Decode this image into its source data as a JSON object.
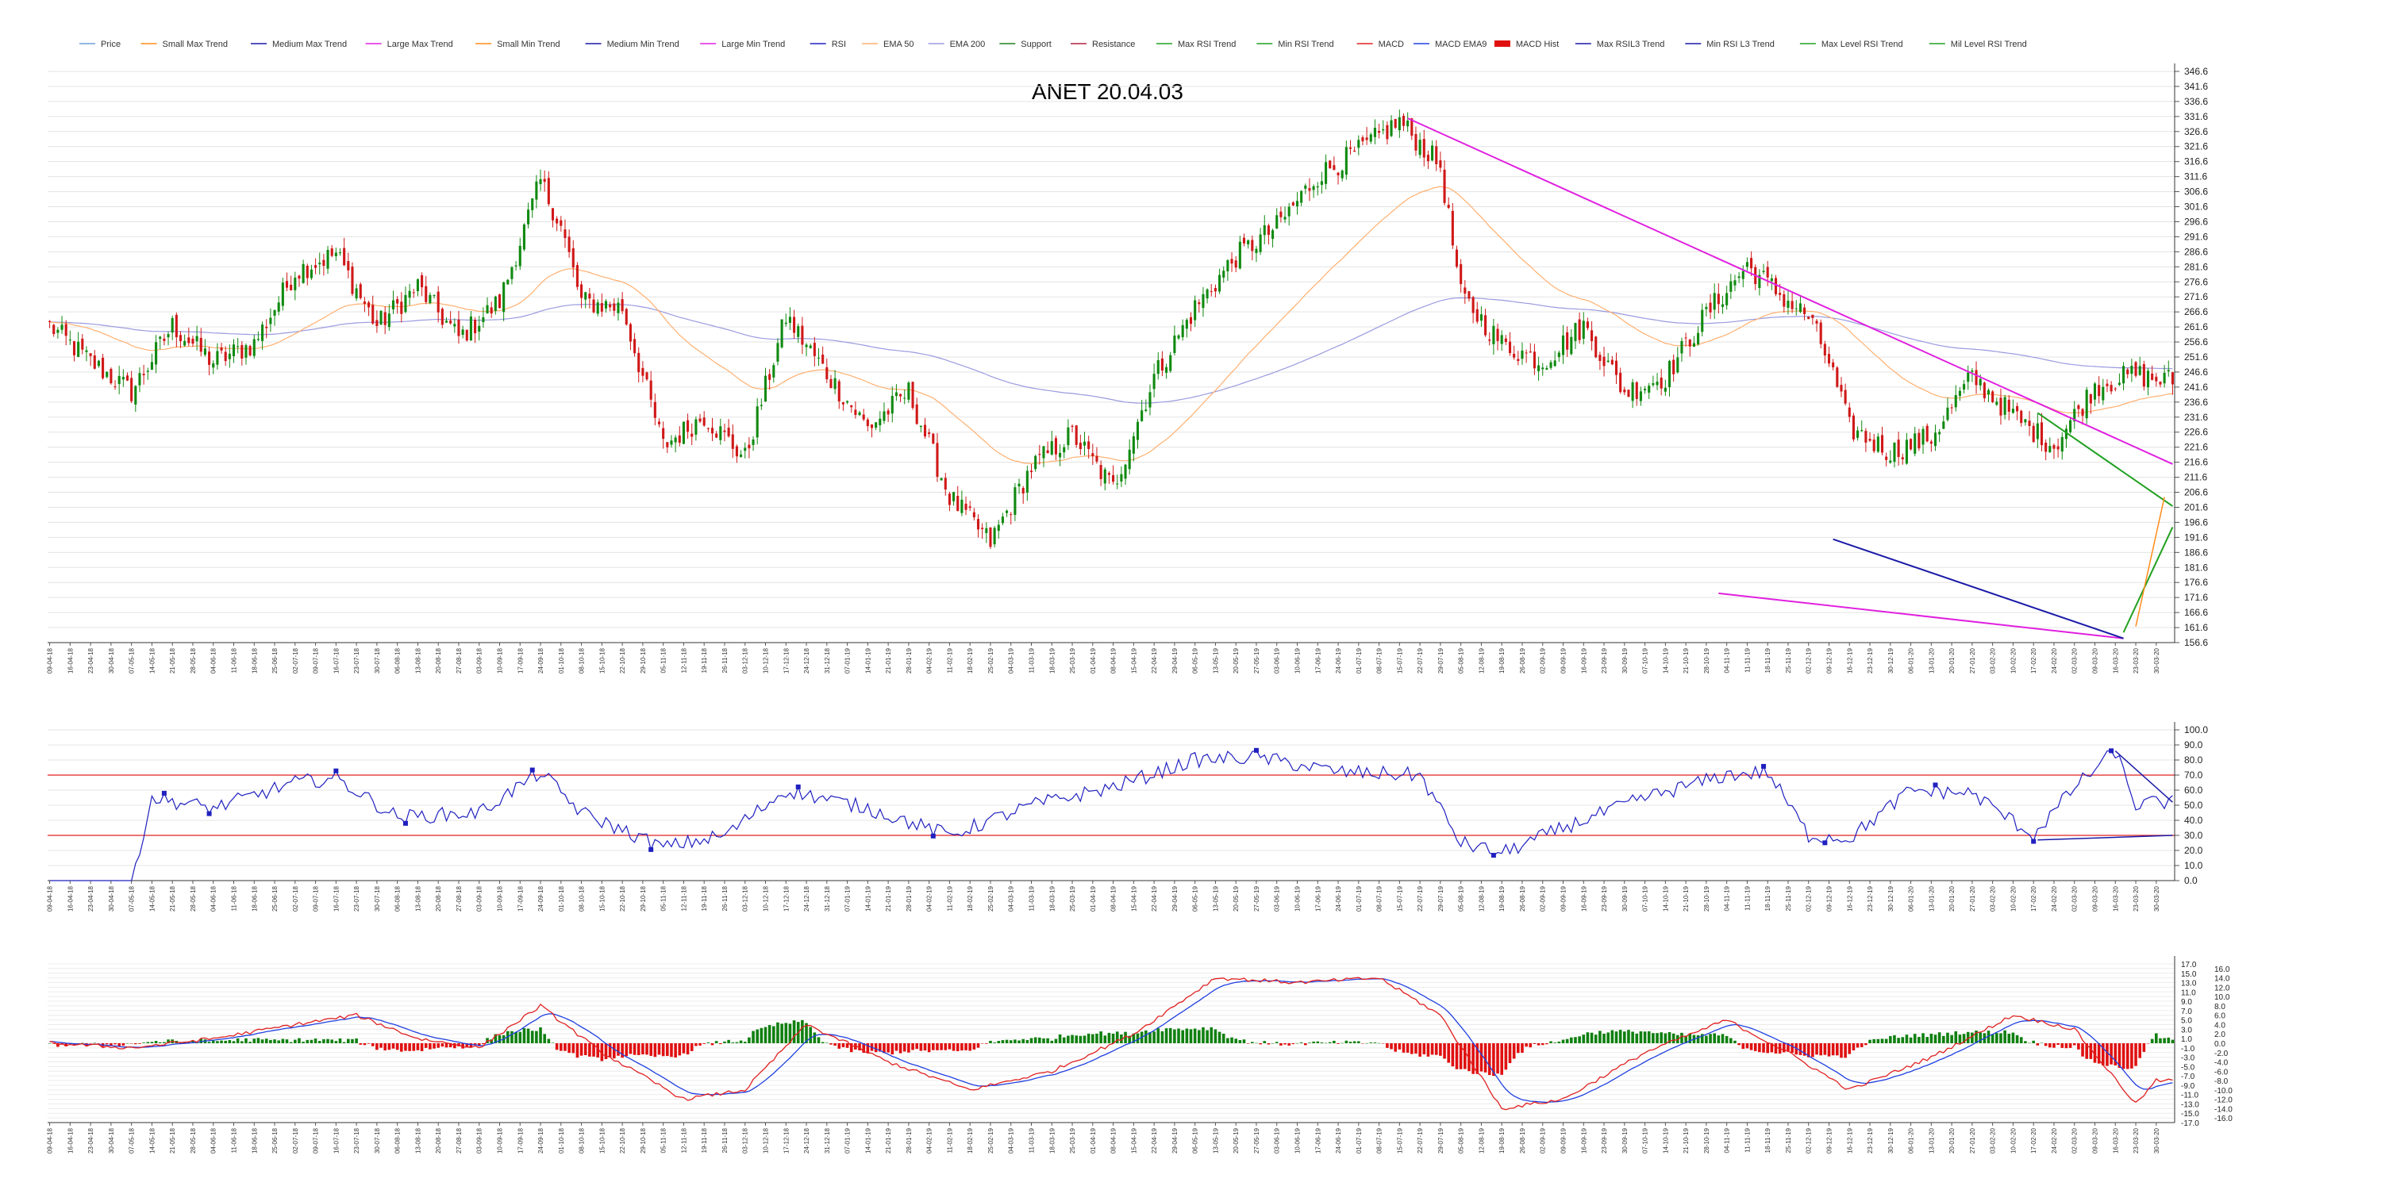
{
  "chart_data": [
    {
      "type": "candlestick",
      "title": "ANET 20.04.03",
      "legend_position": "top-left",
      "legend": [
        {
          "label": "Price",
          "color": "#6f9fd8"
        },
        {
          "label": "Small Max Trend",
          "color": "#ff8c1a"
        },
        {
          "label": "Medium Max Trend",
          "color": "#1a1aa8"
        },
        {
          "label": "Large Max Trend",
          "color": "#e020e0"
        },
        {
          "label": "Small Min Trend",
          "color": "#ff8c1a"
        },
        {
          "label": "Medium Min Trend",
          "color": "#1a1aa8"
        },
        {
          "label": "Large Min Trend",
          "color": "#e020e0"
        },
        {
          "label": "RSI",
          "color": "#2020c0"
        },
        {
          "label": "EMA 50",
          "color": "#ffb070"
        },
        {
          "label": "EMA 200",
          "color": "#9a9ae0"
        },
        {
          "label": "Support",
          "color": "#208020"
        },
        {
          "label": "Resistance",
          "color": "#b02040"
        },
        {
          "label": "Max RSI Trend",
          "color": "#20a020"
        },
        {
          "label": "Min RSI Trend",
          "color": "#20a020"
        },
        {
          "label": "MACD",
          "color": "#e02020"
        },
        {
          "label": "MACD EMA9",
          "color": "#2040e0"
        },
        {
          "label": "MACD Hist",
          "color": "#e01010"
        },
        {
          "label": "Max RSIL3 Trend",
          "color": "#1a1aa8"
        },
        {
          "label": "Min RSI L3 Trend",
          "color": "#1a1aa8"
        },
        {
          "label": "Max Level RSI Trend",
          "color": "#20a020"
        },
        {
          "label": "Mil Level RSI Trend",
          "color": "#20a020"
        }
      ],
      "y_axis": {
        "min": 156.6,
        "max": 346.6,
        "step": 5,
        "side": "right"
      },
      "y_ticks": [
        "346.6",
        "341.6",
        "336.6",
        "331.6",
        "326.6",
        "321.6",
        "316.6",
        "311.6",
        "306.6",
        "301.6",
        "296.6",
        "291.6",
        "286.6",
        "281.6",
        "276.6",
        "271.6",
        "266.6",
        "261.6",
        "256.6",
        "251.6",
        "246.6",
        "241.6",
        "236.6",
        "231.6",
        "226.6",
        "221.6",
        "216.6",
        "211.6",
        "206.6",
        "201.6",
        "196.6",
        "191.6",
        "186.6",
        "181.6",
        "176.6",
        "171.6",
        "166.6",
        "161.6",
        "156.6"
      ],
      "x_range": [
        "2018-04-09",
        "2020-04-03"
      ],
      "price_anchors": [
        [
          "2018-04-09",
          262
        ],
        [
          "2018-04-23",
          250
        ],
        [
          "2018-05-07",
          240
        ],
        [
          "2018-05-21",
          262
        ],
        [
          "2018-06-04",
          250
        ],
        [
          "2018-06-18",
          256
        ],
        [
          "2018-07-02",
          280
        ],
        [
          "2018-07-16",
          286
        ],
        [
          "2018-07-30",
          262
        ],
        [
          "2018-08-13",
          275
        ],
        [
          "2018-08-27",
          258
        ],
        [
          "2018-09-10",
          270
        ],
        [
          "2018-09-24",
          310
        ],
        [
          "2018-10-01",
          295
        ],
        [
          "2018-10-08",
          270
        ],
        [
          "2018-10-22",
          268
        ],
        [
          "2018-11-05",
          222
        ],
        [
          "2018-11-19",
          232
        ],
        [
          "2018-12-03",
          218
        ],
        [
          "2018-12-17",
          265
        ],
        [
          "2018-12-31",
          246
        ],
        [
          "2019-01-14",
          228
        ],
        [
          "2019-01-28",
          240
        ],
        [
          "2019-02-11",
          205
        ],
        [
          "2019-02-25",
          190
        ],
        [
          "2019-03-11",
          215
        ],
        [
          "2019-03-25",
          226
        ],
        [
          "2019-04-08",
          208
        ],
        [
          "2019-04-22",
          245
        ],
        [
          "2019-05-06",
          268
        ],
        [
          "2019-05-20",
          285
        ],
        [
          "2019-06-03",
          295
        ],
        [
          "2019-06-17",
          312
        ],
        [
          "2019-07-01",
          320
        ],
        [
          "2019-07-15",
          330
        ],
        [
          "2019-07-29",
          315
        ],
        [
          "2019-08-05",
          272
        ],
        [
          "2019-08-19",
          256
        ],
        [
          "2019-09-02",
          250
        ],
        [
          "2019-09-16",
          262
        ],
        [
          "2019-09-30",
          240
        ],
        [
          "2019-10-14",
          245
        ],
        [
          "2019-10-28",
          266
        ],
        [
          "2019-11-11",
          282
        ],
        [
          "2019-11-25",
          270
        ],
        [
          "2019-12-02",
          265
        ],
        [
          "2019-12-09",
          250
        ],
        [
          "2019-12-16",
          228
        ],
        [
          "2019-12-30",
          220
        ],
        [
          "2020-01-13",
          225
        ],
        [
          "2020-01-27",
          245
        ],
        [
          "2020-02-10",
          232
        ],
        [
          "2020-02-24",
          222
        ],
        [
          "2020-03-09",
          242
        ],
        [
          "2020-03-23",
          246
        ],
        [
          "2020-03-30",
          244
        ]
      ],
      "annotations": [
        "Large Max Trend line descending from the peak near 331 toward 216",
        "Large Min Trend line and Medium Min Trend line converging near 158",
        "Max Level RSI Trend and Mil Level RSI Trend lines at right edge"
      ]
    },
    {
      "type": "line",
      "name": "RSI",
      "y_axis": {
        "min": 0,
        "max": 100,
        "step": 10
      },
      "y_ticks": [
        "100.0",
        "90.0",
        "80.0",
        "70.0",
        "60.0",
        "50.0",
        "40.0",
        "30.0",
        "20.0",
        "10.0",
        "0.0"
      ],
      "levels": [
        70,
        30
      ],
      "level_color": "#e02020",
      "series_color": "#2020c0",
      "anchors": [
        [
          "2018-04-09",
          0
        ],
        [
          "2018-05-07",
          0
        ],
        [
          "2018-05-14",
          55
        ],
        [
          "2018-06-04",
          48
        ],
        [
          "2018-07-02",
          65
        ],
        [
          "2018-07-16",
          68
        ],
        [
          "2018-08-06",
          42
        ],
        [
          "2018-09-03",
          45
        ],
        [
          "2018-09-24",
          72
        ],
        [
          "2018-10-08",
          45
        ],
        [
          "2018-11-05",
          22
        ],
        [
          "2018-11-26",
          30
        ],
        [
          "2018-12-17",
          60
        ],
        [
          "2019-01-14",
          48
        ],
        [
          "2019-02-11",
          30
        ],
        [
          "2019-03-11",
          50
        ],
        [
          "2019-04-08",
          62
        ],
        [
          "2019-05-06",
          80
        ],
        [
          "2019-05-27",
          82
        ],
        [
          "2019-06-24",
          72
        ],
        [
          "2019-07-22",
          70
        ],
        [
          "2019-08-05",
          25
        ],
        [
          "2019-08-19",
          18
        ],
        [
          "2019-09-09",
          35
        ],
        [
          "2019-10-07",
          55
        ],
        [
          "2019-11-04",
          70
        ],
        [
          "2019-11-18",
          72
        ],
        [
          "2019-12-02",
          30
        ],
        [
          "2019-12-16",
          28
        ],
        [
          "2020-01-06",
          60
        ],
        [
          "2020-01-27",
          58
        ],
        [
          "2020-02-17",
          30
        ],
        [
          "2020-03-02",
          62
        ],
        [
          "2020-03-16",
          86
        ],
        [
          "2020-03-23",
          50
        ],
        [
          "2020-03-30",
          52
        ]
      ]
    },
    {
      "type": "bar-line",
      "name": "MACD",
      "y_axis": {
        "min": -17,
        "max": 17,
        "step": 1
      },
      "y_ticks_left": [
        "17.0",
        "15.0",
        "13.0",
        "11.0",
        "9.0",
        "7.0",
        "5.0",
        "3.0",
        "1.0",
        "-1.0",
        "-3.0",
        "-5.0",
        "-7.0",
        "-9.0",
        "-11.0",
        "-13.0",
        "-15.0",
        "-17.0"
      ],
      "y_ticks_right": [
        "16.0",
        "14.0",
        "12.0",
        "10.0",
        "8.0",
        "6.0",
        "4.0",
        "2.0",
        "0.0",
        "-2.0",
        "-4.0",
        "-6.0",
        "-8.0",
        "-10.0",
        "-12.0",
        "-14.0",
        "-16.0"
      ],
      "macd_color": "#e02020",
      "signal_color": "#2040e0",
      "hist_pos_color": "#108010",
      "hist_neg_color": "#e01010",
      "anchors": [
        [
          "2018-04-09",
          0
        ],
        [
          "2018-05-07",
          -1
        ],
        [
          "2018-06-04",
          1
        ],
        [
          "2018-07-02",
          4
        ],
        [
          "2018-07-23",
          6
        ],
        [
          "2018-08-13",
          1
        ],
        [
          "2018-09-03",
          -1
        ],
        [
          "2018-09-24",
          8
        ],
        [
          "2018-10-15",
          -2
        ],
        [
          "2018-11-12",
          -12
        ],
        [
          "2018-12-03",
          -10
        ],
        [
          "2018-12-24",
          4
        ],
        [
          "2019-01-21",
          -4
        ],
        [
          "2019-02-18",
          -10
        ],
        [
          "2019-03-18",
          -6
        ],
        [
          "2019-04-15",
          2
        ],
        [
          "2019-05-13",
          14
        ],
        [
          "2019-06-10",
          13
        ],
        [
          "2019-07-08",
          14
        ],
        [
          "2019-07-29",
          6
        ],
        [
          "2019-08-19",
          -14
        ],
        [
          "2019-09-09",
          -12
        ],
        [
          "2019-10-07",
          -2
        ],
        [
          "2019-11-04",
          5
        ],
        [
          "2019-11-25",
          -2
        ],
        [
          "2019-12-16",
          -10
        ],
        [
          "2020-01-13",
          -3
        ],
        [
          "2020-02-10",
          6
        ],
        [
          "2020-03-02",
          3
        ],
        [
          "2020-03-23",
          -13
        ],
        [
          "2020-03-30",
          -8
        ]
      ]
    }
  ]
}
